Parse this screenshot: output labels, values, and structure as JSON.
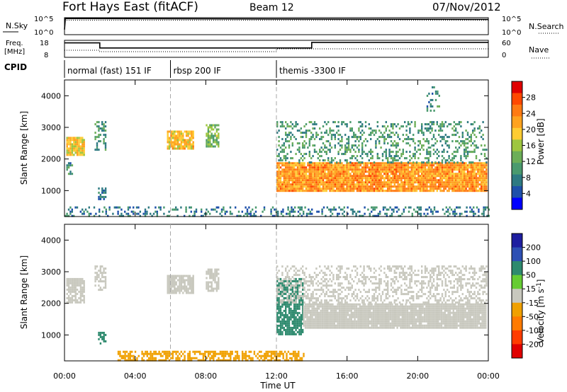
{
  "header": {
    "station": "Fort Hays East (fitACF)",
    "beam": "Beam 12",
    "date": "07/Nov/2012"
  },
  "noise_panel": {
    "left_label": "N.Sky",
    "right_label": "N.Search",
    "left_ticks": [
      "10^5",
      "10^0"
    ],
    "right_ticks": [
      "10^5",
      "10^0"
    ]
  },
  "freq_panel": {
    "left_label_line1": "Freq.",
    "left_label_line2": "[MHz]",
    "left_ticks": [
      "18",
      "8"
    ],
    "right_label": "Nave",
    "right_ticks": [
      "60",
      "0"
    ]
  },
  "cpid": {
    "label": "CPID",
    "modes": [
      {
        "name": "normal (fast) 151 IF",
        "start_hour": 0
      },
      {
        "name": "rbsp 200 IF",
        "start_hour": 6
      },
      {
        "name": "themis -3300 IF",
        "start_hour": 12
      }
    ]
  },
  "time_axis": {
    "label": "Time UT",
    "ticks": [
      "00:00",
      "04:00",
      "08:00",
      "12:00",
      "16:00",
      "20:00",
      "00:00"
    ]
  },
  "colors": {
    "power_scale": [
      "#0000ff",
      "#1e50aa",
      "#2e7a82",
      "#4a9a6e",
      "#6cae58",
      "#9ec640",
      "#ffcc33",
      "#ffa21e",
      "#ff7a12",
      "#ff4800",
      "#e00000"
    ],
    "velocity_scale": [
      "#1e1ea0",
      "#2e50b4",
      "#2e8a6e",
      "#66cc33",
      "#c8c8be",
      "#f0a000",
      "#ff7a00",
      "#ff3c00",
      "#e00000"
    ]
  },
  "chart_data": [
    {
      "type": "line",
      "name": "noise",
      "x_unit": "hours UT",
      "xlim": [
        0,
        24
      ],
      "series": [
        {
          "name": "N.Sky",
          "x": [
            0,
            0.05,
            24
          ],
          "y": [
            0.3,
            0.95,
            0.9
          ]
        },
        {
          "name": "N.Search",
          "x": [
            0,
            24
          ],
          "y": [
            0.85,
            0.85
          ]
        }
      ]
    },
    {
      "type": "line",
      "name": "frequency_nave",
      "x_unit": "hours UT",
      "xlim": [
        0,
        24
      ],
      "series": [
        {
          "name": "Freq.",
          "x": [
            0,
            2,
            2,
            14,
            14,
            24
          ],
          "y": [
            16.5,
            16.5,
            13.5,
            13.5,
            16.8,
            16.8
          ],
          "ylim": [
            8,
            18
          ]
        },
        {
          "name": "Nave",
          "x": [
            0,
            2,
            2,
            12,
            12,
            24
          ],
          "y": [
            25,
            25,
            20,
            20,
            30,
            30
          ],
          "ylim": [
            0,
            60
          ]
        }
      ]
    },
    {
      "type": "heatmap",
      "name": "power",
      "xlabel": "Time UT",
      "ylabel": "Slant Range [km]",
      "xlim": [
        0,
        24
      ],
      "ylim": [
        180,
        4500
      ],
      "yticks": [
        1000,
        2000,
        3000,
        4000
      ],
      "colorbar": {
        "label": "Power [dB]",
        "ticks": [
          "4",
          "8",
          "12",
          "16",
          "20",
          "24",
          "28"
        ],
        "range": [
          0,
          30
        ]
      },
      "regions": [
        {
          "t": [
            0.1,
            1.1
          ],
          "r": [
            2100,
            2700
          ],
          "value": 18,
          "density": 0.9
        },
        {
          "t": [
            0.1,
            0.4
          ],
          "r": [
            1500,
            1900
          ],
          "value": 8,
          "density": 0.5
        },
        {
          "t": [
            1.7,
            2.3
          ],
          "r": [
            2300,
            3200
          ],
          "value": 9,
          "density": 0.5
        },
        {
          "t": [
            1.9,
            2.3
          ],
          "r": [
            700,
            1100
          ],
          "value": 6,
          "density": 0.5
        },
        {
          "t": [
            5.8,
            7.3
          ],
          "r": [
            2300,
            2900
          ],
          "value": 19,
          "density": 0.9
        },
        {
          "t": [
            8.0,
            8.7
          ],
          "r": [
            2400,
            3100
          ],
          "value": 13,
          "density": 0.7
        },
        {
          "t": [
            12.0,
            23.9
          ],
          "r": [
            1000,
            1900
          ],
          "value": 22,
          "density": 0.95
        },
        {
          "t": [
            12.0,
            23.9
          ],
          "r": [
            1900,
            3200
          ],
          "value": 9,
          "density": 0.3
        },
        {
          "t": [
            20.5,
            21.2
          ],
          "r": [
            3500,
            4300
          ],
          "value": 7,
          "density": 0.25
        },
        {
          "t": [
            0.0,
            24.0
          ],
          "r": [
            180,
            500
          ],
          "value": 6,
          "density": 0.3
        }
      ]
    },
    {
      "type": "heatmap",
      "name": "velocity",
      "xlabel": "Time UT",
      "ylabel": "Slant Range [km]",
      "xlim": [
        0,
        24
      ],
      "ylim": [
        180,
        4500
      ],
      "yticks": [
        1000,
        2000,
        3000,
        4000
      ],
      "colorbar": {
        "label": "Velocity [m s-1]",
        "ticks": [
          "200",
          "100",
          "50",
          "15",
          "-15",
          "-50",
          "-100",
          "-200"
        ],
        "range": [
          -250,
          250
        ]
      },
      "regions": [
        {
          "t": [
            0.1,
            1.1
          ],
          "r": [
            2000,
            2800
          ],
          "value": 0,
          "density": 0.85
        },
        {
          "t": [
            1.7,
            2.3
          ],
          "r": [
            2400,
            3200
          ],
          "value": 0,
          "density": 0.5
        },
        {
          "t": [
            1.9,
            2.3
          ],
          "r": [
            700,
            1100
          ],
          "value": 60,
          "density": 0.5
        },
        {
          "t": [
            5.8,
            7.3
          ],
          "r": [
            2300,
            2900
          ],
          "value": 0,
          "density": 0.85
        },
        {
          "t": [
            8.0,
            8.7
          ],
          "r": [
            2400,
            3100
          ],
          "value": 0,
          "density": 0.6
        },
        {
          "t": [
            12.0,
            13.5
          ],
          "r": [
            1000,
            2800
          ],
          "value": 40,
          "density": 0.8
        },
        {
          "t": [
            13.5,
            23.9
          ],
          "r": [
            1200,
            2000
          ],
          "value": 0,
          "density": 0.95
        },
        {
          "t": [
            12.0,
            23.9
          ],
          "r": [
            2000,
            3200
          ],
          "value": 0,
          "density": 0.4
        },
        {
          "t": [
            3.0,
            13.5
          ],
          "r": [
            200,
            500
          ],
          "value": -40,
          "density": 0.6
        }
      ]
    }
  ]
}
